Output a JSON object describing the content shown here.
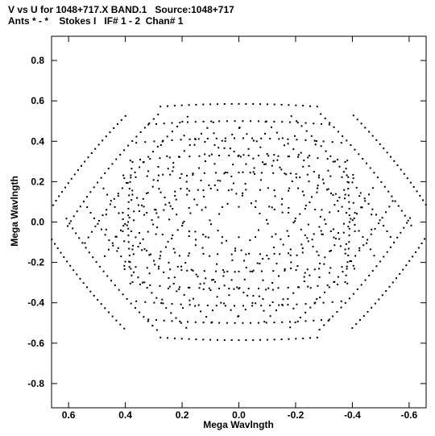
{
  "header": {
    "line1": "V vs U for 1048+717.X BAND.1   Source:1048+717",
    "line2": "Ants * - *    Stokes I   IF# 1 - 2  Chan# 1"
  },
  "chart_data": {
    "type": "scatter",
    "xlabel": "Mega Wavlngth",
    "ylabel": "Mega Wavlngth",
    "xlim": [
      0.66,
      -0.66
    ],
    "ylim": [
      -0.92,
      0.92
    ],
    "x_ticks": [
      0.6,
      0.4,
      0.2,
      0.0,
      -0.2,
      -0.4,
      -0.6
    ],
    "x_tick_labels": [
      "0.6",
      "0.4",
      "0.2",
      "0.0",
      "-0.2",
      "-0.4",
      "-0.6"
    ],
    "y_ticks": [
      0.8,
      0.6,
      0.4,
      0.2,
      0.0,
      -0.2,
      -0.4,
      -0.6,
      -0.8
    ],
    "y_tick_labels": [
      "0.8",
      "0.6",
      "0.4",
      "0.2",
      "0.0",
      "-0.2",
      "-0.4",
      "-0.6",
      "-0.8"
    ],
    "marker_color": "#000000",
    "tracks": [
      {
        "pa": 0,
        "u": 0.0,
        "v": 0.075,
        "len": 1.1
      },
      {
        "pa": 0,
        "u": 0.0,
        "v": 0.16,
        "len": 1.0
      },
      {
        "pa": 0,
        "u": 0.0,
        "v": 0.245,
        "len": 0.95
      },
      {
        "pa": 0,
        "u": 0.0,
        "v": 0.33,
        "len": 0.9
      },
      {
        "pa": 0,
        "u": 0.0,
        "v": 0.415,
        "len": 0.85
      },
      {
        "pa": 0,
        "u": 0.0,
        "v": 0.5,
        "len": 0.75
      },
      {
        "pa": 0,
        "u": 0.0,
        "v": 0.585,
        "len": 0.65
      },
      {
        "pa": 60,
        "u": 0.0,
        "v": 0.085,
        "len": 1.1
      },
      {
        "pa": 60,
        "u": 0.0,
        "v": 0.175,
        "len": 1.0
      },
      {
        "pa": 60,
        "u": 0.0,
        "v": 0.265,
        "len": 0.95
      },
      {
        "pa": 60,
        "u": 0.0,
        "v": 0.355,
        "len": 0.9
      },
      {
        "pa": 60,
        "u": 0.0,
        "v": 0.445,
        "len": 0.85
      },
      {
        "pa": 60,
        "u": 0.0,
        "v": 0.535,
        "len": 0.75
      },
      {
        "pa": 60,
        "u": 0.0,
        "v": 0.625,
        "len": 0.6
      },
      {
        "pa": -60,
        "u": 0.0,
        "v": 0.08,
        "len": 1.1
      },
      {
        "pa": -60,
        "u": 0.0,
        "v": 0.17,
        "len": 1.0
      },
      {
        "pa": -60,
        "u": 0.0,
        "v": 0.26,
        "len": 0.95
      },
      {
        "pa": -60,
        "u": 0.0,
        "v": 0.35,
        "len": 0.9
      },
      {
        "pa": -60,
        "u": 0.0,
        "v": 0.44,
        "len": 0.85
      },
      {
        "pa": -60,
        "u": 0.0,
        "v": 0.53,
        "len": 0.75
      },
      {
        "pa": -60,
        "u": 0.0,
        "v": 0.62,
        "len": 0.6
      },
      {
        "pa": 30,
        "u": 0.0,
        "v": 0.12,
        "len": 0.9
      },
      {
        "pa": 30,
        "u": 0.0,
        "v": 0.3,
        "len": 0.8
      },
      {
        "pa": -30,
        "u": 0.0,
        "v": 0.21,
        "len": 0.85
      },
      {
        "pa": 90,
        "u": 0.0,
        "v": 0.39,
        "len": 0.7
      }
    ]
  }
}
